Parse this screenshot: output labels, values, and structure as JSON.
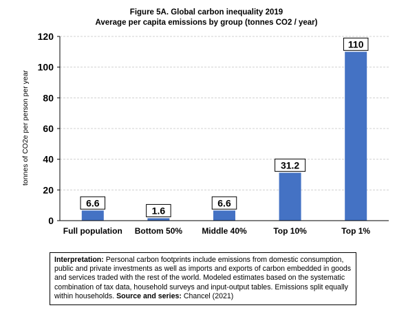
{
  "chart_data": {
    "type": "bar",
    "title": "Figure 5A. Global carbon inequality 2019",
    "subtitle": "Average per capita emissions by group (tonnes CO2 / year)",
    "ylabel": "tonnes of CO2e per person per year",
    "xlabel": "",
    "categories": [
      "Full population",
      "Bottom 50%",
      "Middle 40%",
      "Top 10%",
      "Top 1%"
    ],
    "values": [
      6.6,
      1.6,
      6.6,
      31.2,
      110
    ],
    "data_labels": [
      "6.6",
      "1.6",
      "6.6",
      "31.2",
      "110"
    ],
    "ylim": [
      0,
      120
    ],
    "yticks": [
      0,
      20,
      40,
      60,
      80,
      100,
      120
    ],
    "grid": true,
    "bar_color": "#4472C4"
  },
  "note": {
    "interpretation_label": "Interpretation:",
    "interpretation_text": " Personal carbon footprints include emissions from domestic consumption, public and private investments as well as imports and exports of carbon embedded in goods and services traded with the rest of the world. Modeled estimates based on the systematic combination of tax data, household surveys and input-output tables. Emissions split equally within households. ",
    "source_label": "Source and series:",
    "source_text": " Chancel (2021)"
  }
}
